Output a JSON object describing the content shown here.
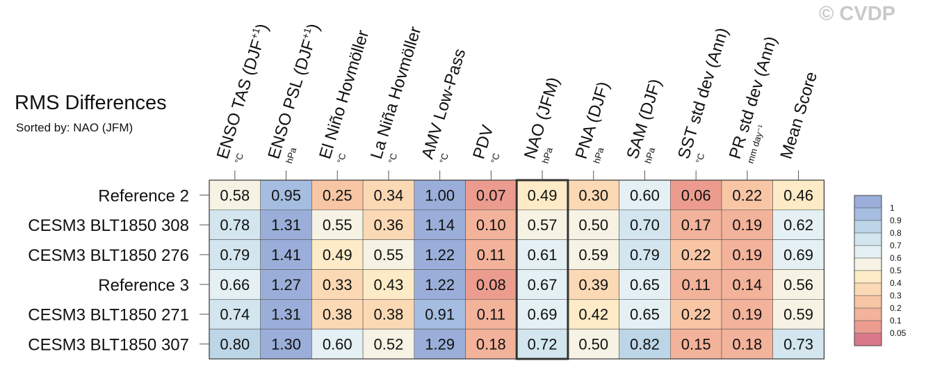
{
  "watermark": "© CVDP",
  "chart_data": {
    "type": "heatmap",
    "title": "RMS Differences",
    "subtitle": "Sorted by: NAO (JFM)",
    "columns": [
      {
        "label": "ENSO TAS (DJF",
        "sup": "+1",
        "close": ")",
        "unit": "°C"
      },
      {
        "label": "ENSO PSL (DJF",
        "sup": "+1",
        "close": ")",
        "unit": "hPa"
      },
      {
        "label": "El Niño Hovmöller",
        "sup": "",
        "close": "",
        "unit": "°C"
      },
      {
        "label": "La Niña Hovmöller",
        "sup": "",
        "close": "",
        "unit": "°C"
      },
      {
        "label": "AMV Low-Pass",
        "sup": "",
        "close": "",
        "unit": "°C"
      },
      {
        "label": "PDV",
        "sup": "",
        "close": "",
        "unit": "°C"
      },
      {
        "label": "NAO (JFM)",
        "sup": "",
        "close": "",
        "unit": "hPa"
      },
      {
        "label": "PNA (DJF)",
        "sup": "",
        "close": "",
        "unit": "hPa"
      },
      {
        "label": "SAM (DJF)",
        "sup": "",
        "close": "",
        "unit": "hPa"
      },
      {
        "label": "SST std dev (Ann)",
        "sup": "",
        "close": "",
        "unit": "°C"
      },
      {
        "label": "PR std dev (Ann)",
        "sup": "",
        "close": "",
        "unit": "mm day⁻¹"
      },
      {
        "label": "Mean Score",
        "sup": "",
        "close": "",
        "unit": ""
      }
    ],
    "rows": [
      "Reference 2",
      "CESM3 BLT1850 308",
      "CESM3 BLT1850 276",
      "Reference 3",
      "CESM3 BLT1850 271",
      "CESM3 BLT1850 307"
    ],
    "values": [
      [
        0.58,
        0.95,
        0.25,
        0.34,
        1.0,
        0.07,
        0.49,
        0.3,
        0.6,
        0.06,
        0.22,
        0.46
      ],
      [
        0.78,
        1.31,
        0.55,
        0.36,
        1.14,
        0.1,
        0.57,
        0.5,
        0.7,
        0.17,
        0.19,
        0.62
      ],
      [
        0.79,
        1.41,
        0.49,
        0.55,
        1.22,
        0.11,
        0.61,
        0.59,
        0.79,
        0.22,
        0.19,
        0.69
      ],
      [
        0.66,
        1.27,
        0.33,
        0.43,
        1.22,
        0.08,
        0.67,
        0.39,
        0.65,
        0.11,
        0.14,
        0.56
      ],
      [
        0.74,
        1.31,
        0.38,
        0.38,
        0.91,
        0.11,
        0.69,
        0.42,
        0.65,
        0.22,
        0.19,
        0.59
      ],
      [
        0.8,
        1.3,
        0.6,
        0.52,
        1.29,
        0.18,
        0.72,
        0.5,
        0.82,
        0.15,
        0.18,
        0.73
      ]
    ],
    "highlight_column": 6,
    "colorbar": {
      "levels": [
        "1",
        "0.9",
        "0.8",
        "0.7",
        "0.6",
        "0.5",
        "0.4",
        "0.3",
        "0.2",
        "0.1",
        "0.05"
      ],
      "bounds": [
        0.05,
        0.1,
        0.2,
        0.3,
        0.4,
        0.5,
        0.6,
        0.7,
        0.8,
        0.9,
        1.0
      ],
      "colors": [
        "#d9788a",
        "#ec9c8f",
        "#f3b29a",
        "#f8c6a5",
        "#fbd9b4",
        "#fcebc6",
        "#f6f3e4",
        "#e4f0f3",
        "#d3e6ef",
        "#bdd6e7",
        "#a4bde0",
        "#9aaed9"
      ]
    }
  }
}
